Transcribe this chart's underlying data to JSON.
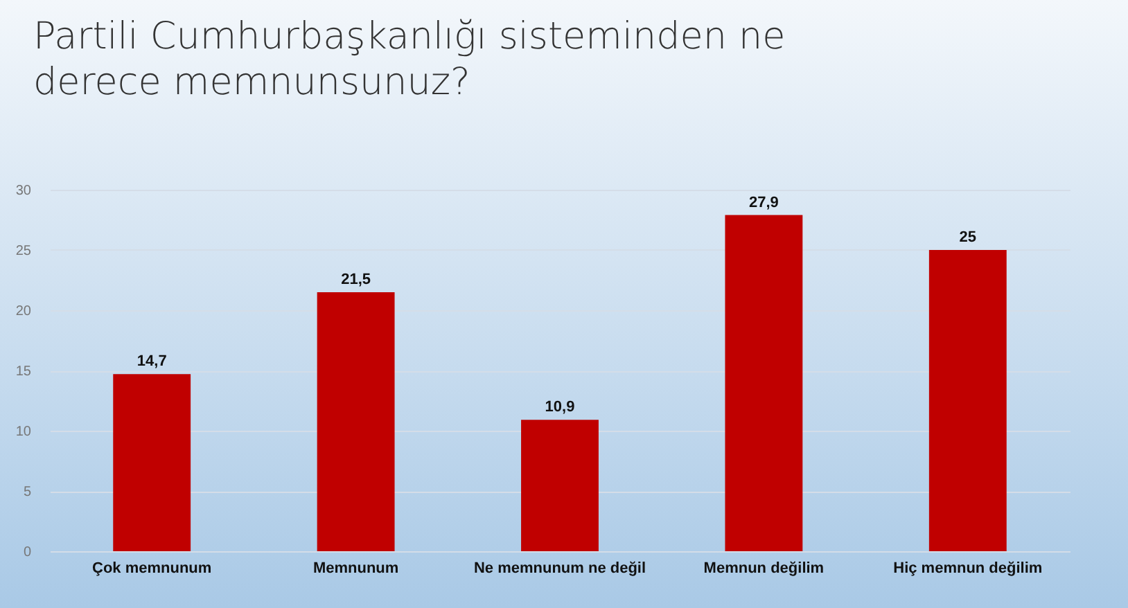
{
  "chart_data": {
    "type": "bar",
    "title": "Partili Cumhurbaşkanlığı sisteminden ne derece memnunsunuz?",
    "categories": [
      "Çok memnunum",
      "Memnunum",
      "Ne memnunum ne değil",
      "Memnun değilim",
      "Hiç memnun değilim"
    ],
    "values": [
      14.7,
      21.5,
      10.9,
      27.9,
      25
    ],
    "value_labels": [
      "14,7",
      "21,5",
      "10,9",
      "27,9",
      "25"
    ],
    "color": "#c00000",
    "ylim": [
      0,
      30
    ],
    "yticks": [
      0,
      5,
      10,
      15,
      20,
      25,
      30
    ],
    "grid": "y"
  }
}
